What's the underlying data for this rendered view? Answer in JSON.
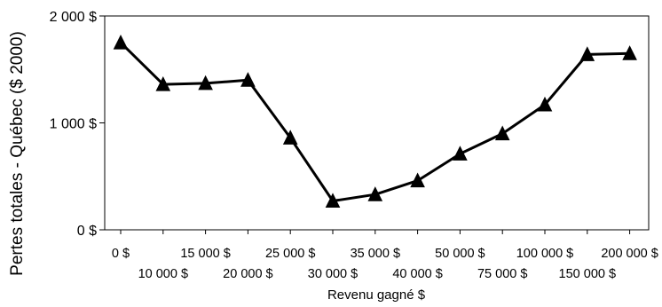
{
  "chart_data": {
    "type": "line",
    "title": "",
    "xlabel": "Revenu gagné $",
    "ylabel": "Pertes totales - Québec ($ 2000)",
    "categories": [
      "0 $",
      "10 000 $",
      "15 000 $",
      "20 000 $",
      "25 000 $",
      "30 000 $",
      "35 000 $",
      "40 000 $",
      "50 000 $",
      "75 000 $",
      "100 000 $",
      "150 000 $",
      "200 000 $"
    ],
    "values": [
      1750,
      1360,
      1370,
      1400,
      860,
      270,
      330,
      460,
      710,
      900,
      1170,
      1640,
      1650
    ],
    "ylim": [
      0,
      2000
    ],
    "yticks": [
      0,
      1000,
      2000
    ],
    "ytick_labels": [
      "0 $",
      "1 000 $",
      "2 000 $"
    ],
    "grid": false,
    "marker": "triangle",
    "line_color": "#000000"
  }
}
